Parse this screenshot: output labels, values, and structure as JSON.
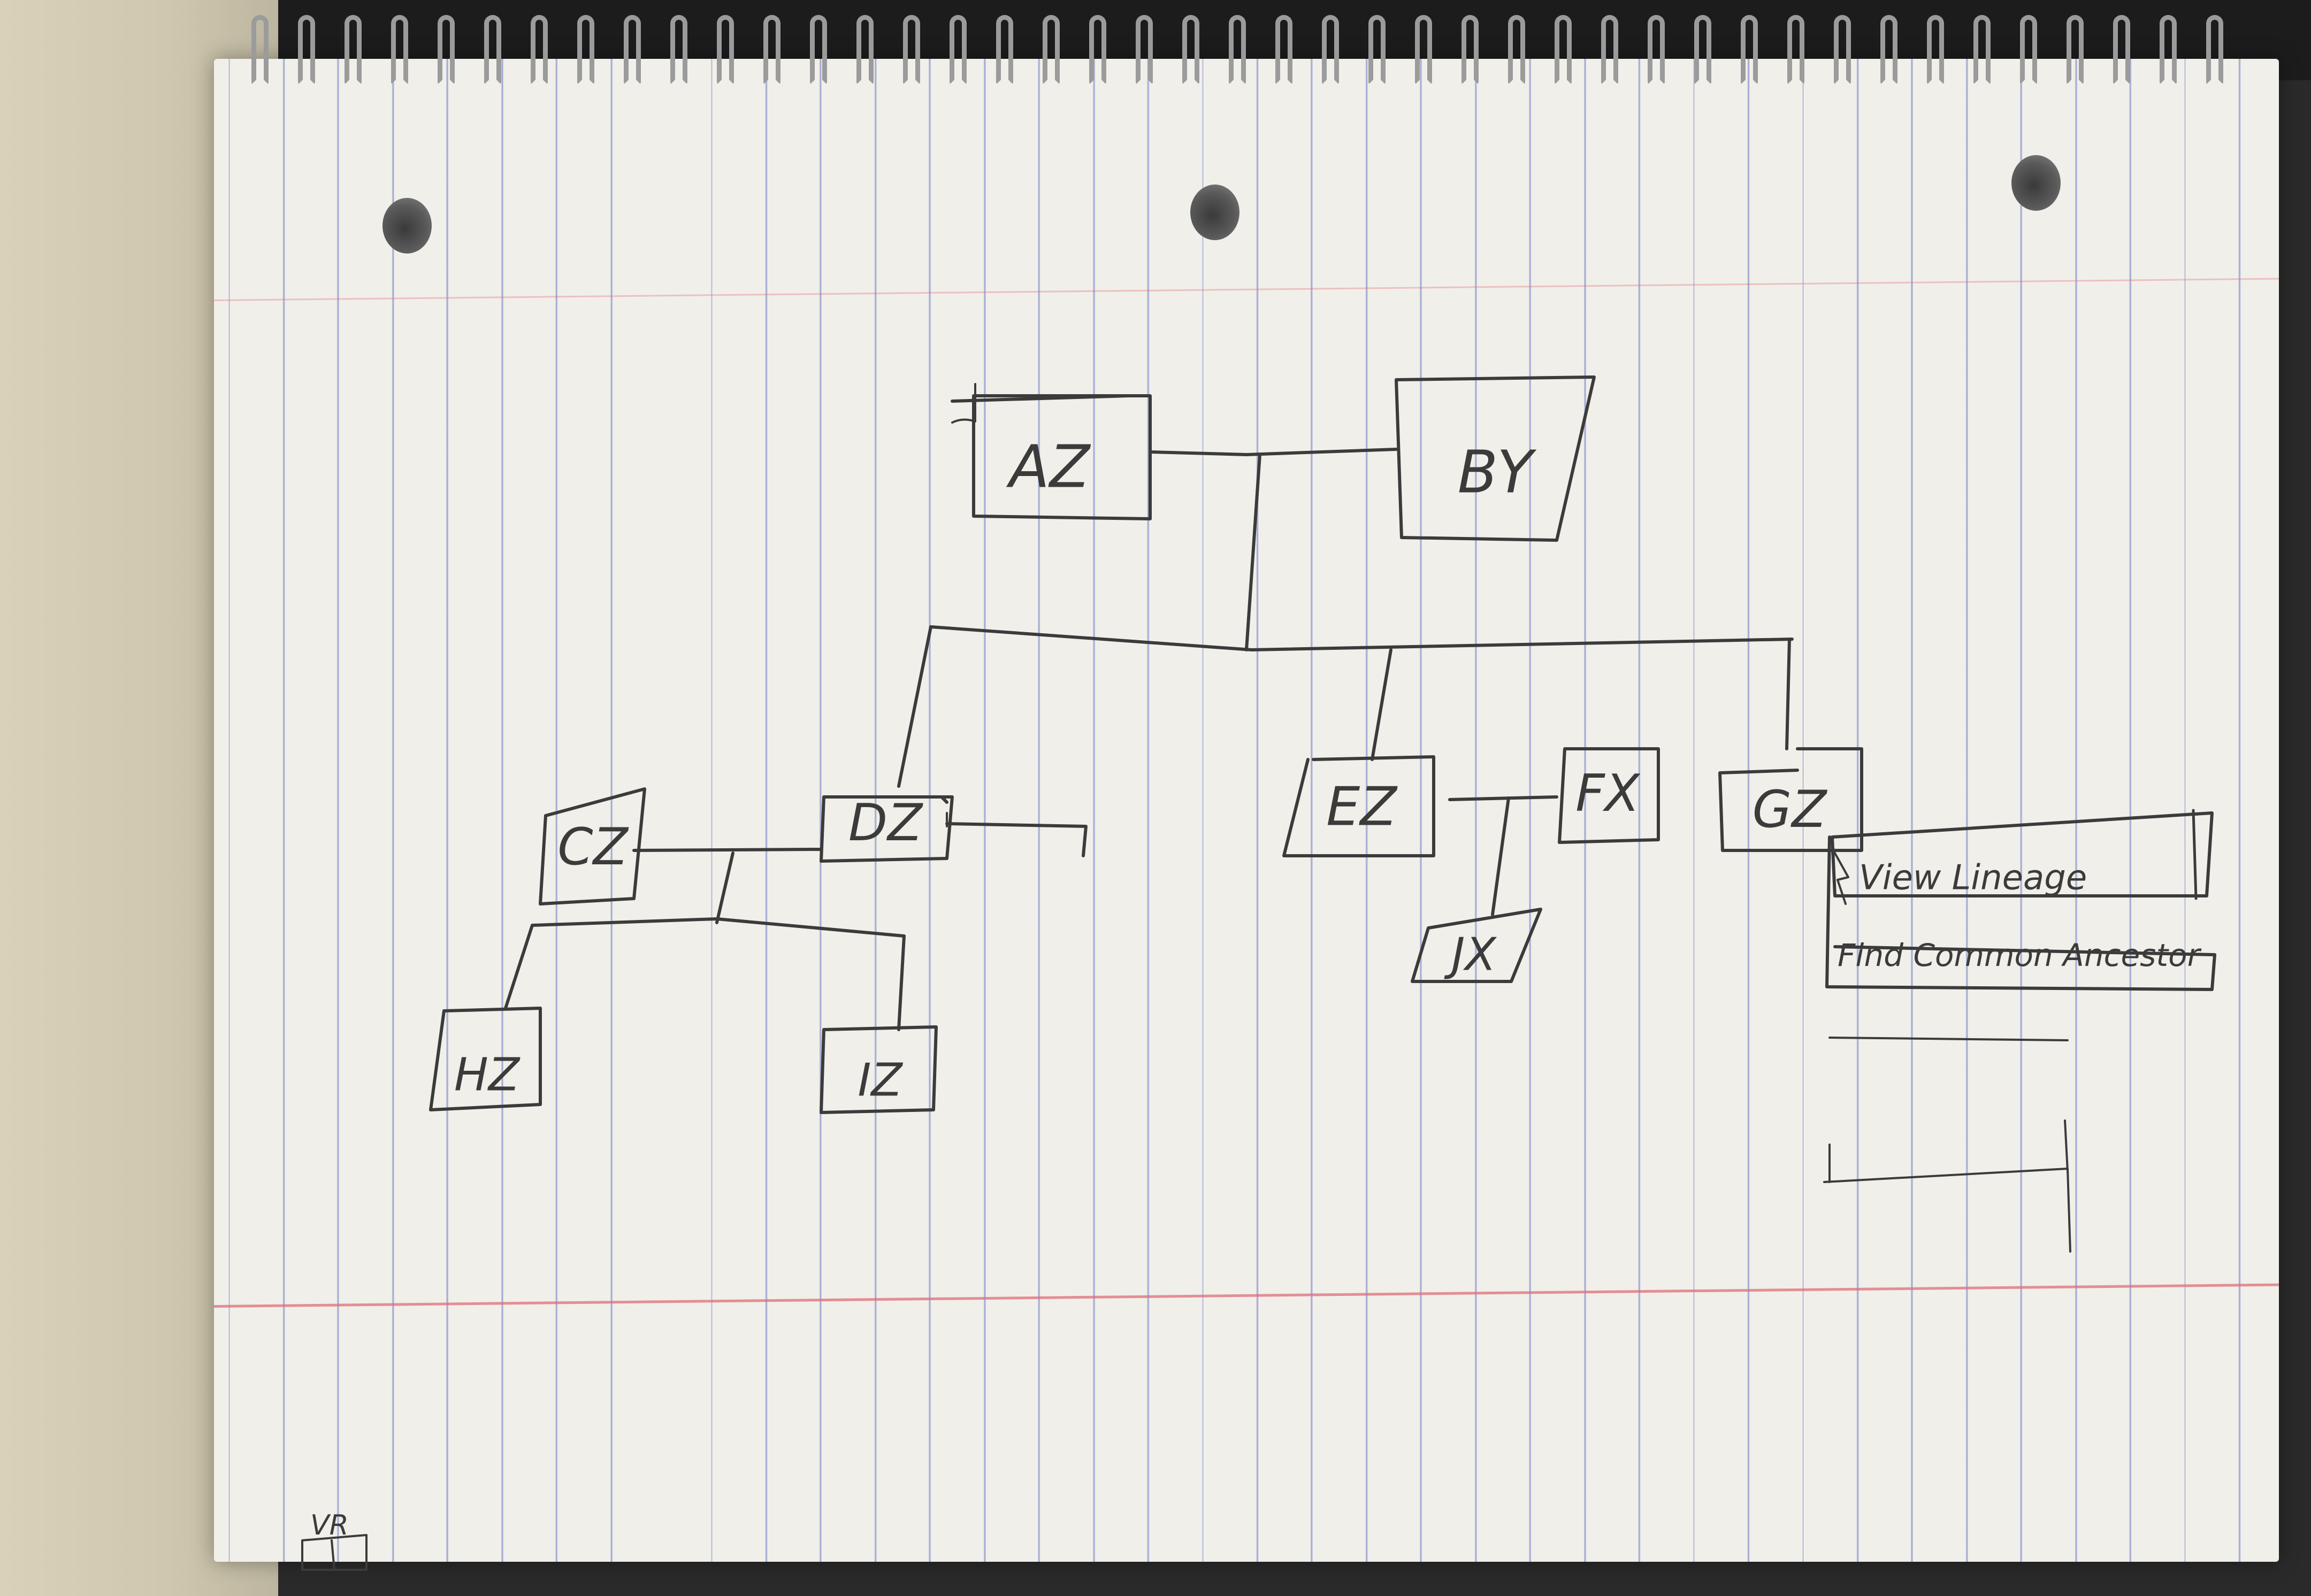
{
  "nodes": {
    "az": "AZ",
    "by": "BY",
    "cz": "CZ",
    "dz": "DZ",
    "ez": "EZ",
    "fx": "FX",
    "gz": "GZ",
    "hz": "HZ",
    "iz": "IZ",
    "jx": "JX"
  },
  "context_menu": {
    "items": [
      "View Lineage",
      "Find Common Ancestor"
    ]
  },
  "signature": "VR",
  "colors": {
    "ink": "#3b3b3b",
    "paper": "#f1efe9",
    "rule_blue": "#6676c4",
    "margin_red": "#de6e78"
  }
}
